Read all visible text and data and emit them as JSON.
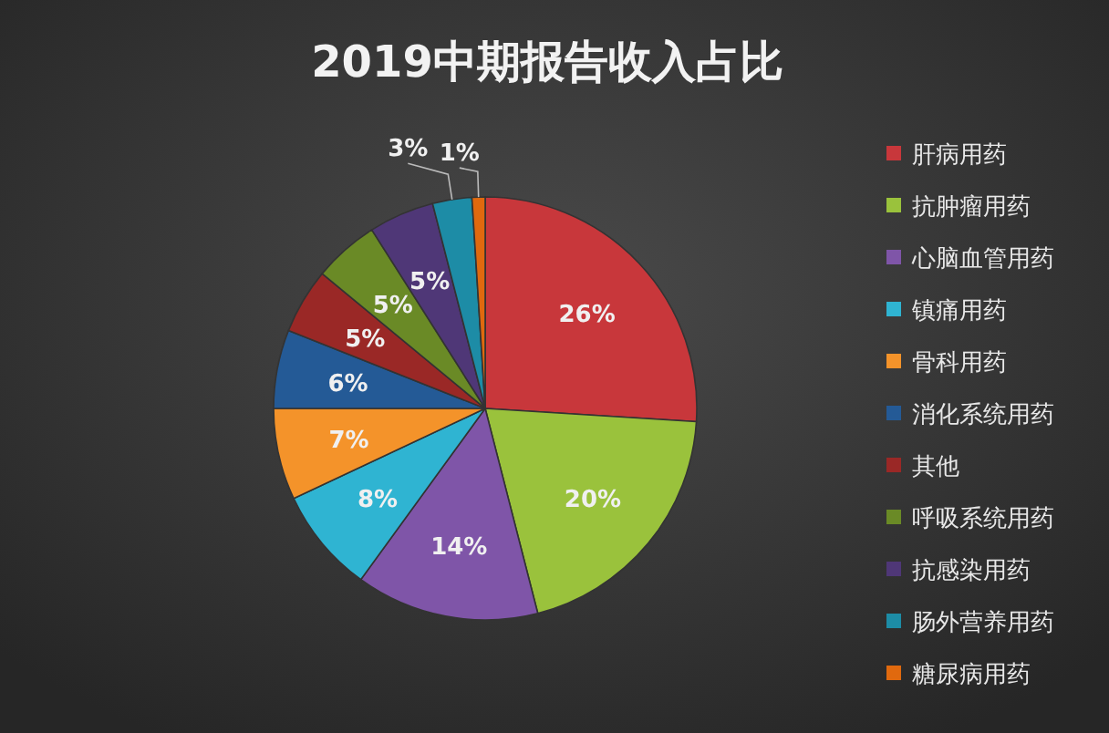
{
  "chart_data": {
    "type": "pie",
    "title": "2019中期报告收入占比",
    "categories": [
      "肝病用药",
      "抗肿瘤用药",
      "心脑血管用药",
      "镇痛用药",
      "骨科用药",
      "消化系统用药",
      "其他",
      "呼吸系统用药",
      "抗感染用药",
      "肠外营养用药",
      "糖尿病用药"
    ],
    "values": [
      26,
      20,
      14,
      8,
      7,
      6,
      5,
      5,
      5,
      3,
      1
    ],
    "value_labels": [
      "26%",
      "20%",
      "14%",
      "8%",
      "7%",
      "6%",
      "5%",
      "5%",
      "5%",
      "3%",
      "1%"
    ],
    "colors": [
      "#c8373b",
      "#9ac23c",
      "#7f55a8",
      "#2fb4d2",
      "#f4932a",
      "#245a96",
      "#9a2826",
      "#6a8a26",
      "#4f3777",
      "#1d8ca6",
      "#e0690e"
    ],
    "legend": "right"
  }
}
